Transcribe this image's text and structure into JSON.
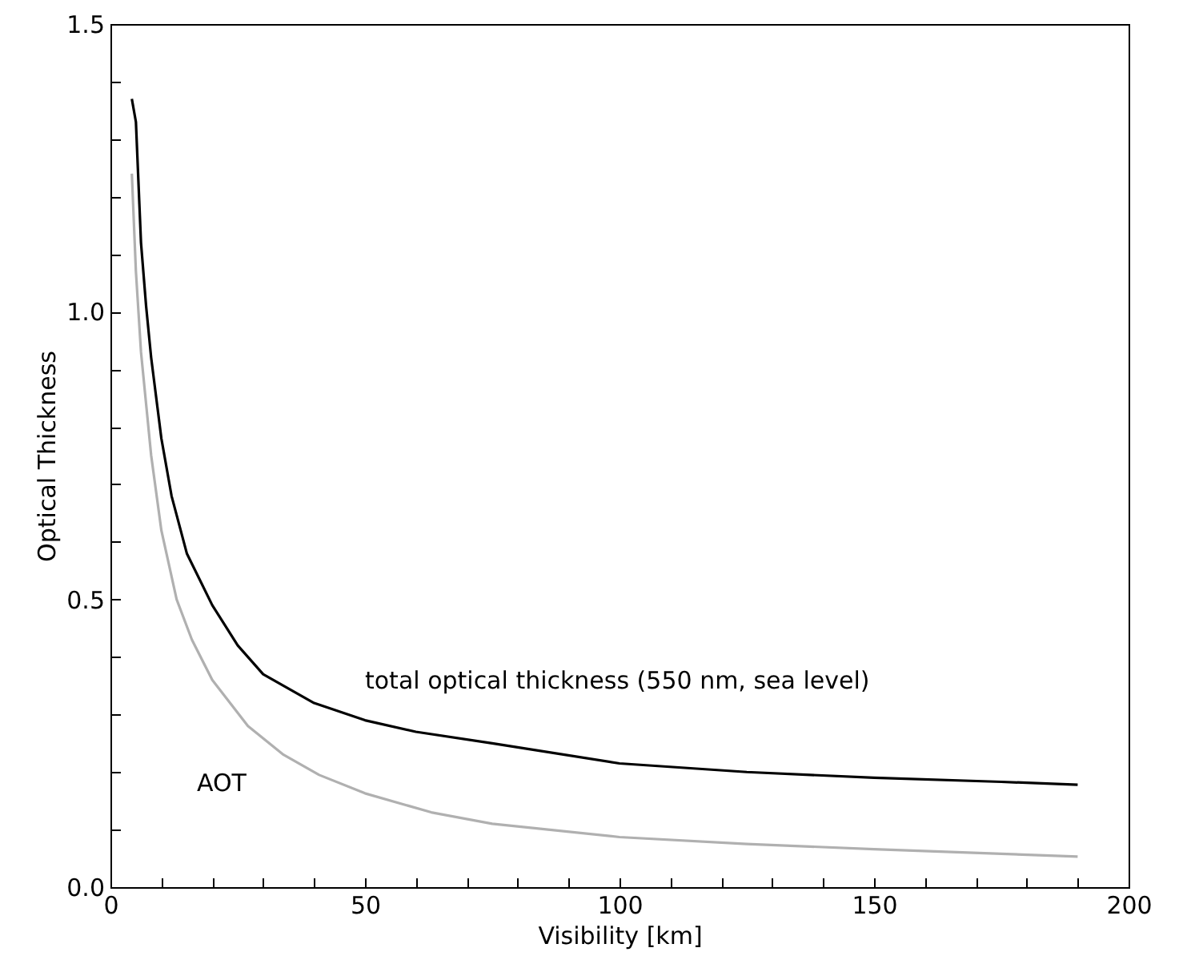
{
  "chart_data": {
    "type": "line",
    "xlabel": "Visibility [km]",
    "ylabel": "Optical Thickness",
    "xlim": [
      0,
      200
    ],
    "ylim": [
      0,
      1.5
    ],
    "xticks": [
      0,
      {
        "value": 10,
        "label": null
      },
      {
        "value": 20,
        "label": null
      },
      {
        "value": 30,
        "label": null
      },
      {
        "value": 40,
        "label": null
      },
      50,
      {
        "value": 60,
        "label": null
      },
      {
        "value": 70,
        "label": null
      },
      {
        "value": 80,
        "label": null
      },
      {
        "value": 90,
        "label": null
      },
      100,
      {
        "value": 110,
        "label": null
      },
      {
        "value": 120,
        "label": null
      },
      {
        "value": 130,
        "label": null
      },
      {
        "value": 140,
        "label": null
      },
      150,
      {
        "value": 160,
        "label": null
      },
      {
        "value": 170,
        "label": null
      },
      {
        "value": 180,
        "label": null
      },
      {
        "value": 190,
        "label": null
      },
      200
    ],
    "yticks": [
      {
        "value": 0,
        "label": "0.0"
      },
      {
        "value": 0.1,
        "label": null
      },
      {
        "value": 0.2,
        "label": null
      },
      {
        "value": 0.3,
        "label": null
      },
      {
        "value": 0.4,
        "label": null
      },
      {
        "value": 0.5,
        "label": "0.5"
      },
      {
        "value": 0.6,
        "label": null
      },
      {
        "value": 0.7,
        "label": null
      },
      {
        "value": 0.8,
        "label": null
      },
      {
        "value": 0.9,
        "label": null
      },
      {
        "value": 1.0,
        "label": "1.0"
      },
      {
        "value": 1.1,
        "label": null
      },
      {
        "value": 1.2,
        "label": null
      },
      {
        "value": 1.3,
        "label": null
      },
      {
        "value": 1.4,
        "label": null
      },
      {
        "value": 1.5,
        "label": "1.5"
      }
    ],
    "grid": false,
    "legend": false,
    "series": [
      {
        "color": "#000000",
        "x": [
          4.2,
          5,
          6,
          7,
          8,
          10,
          12,
          15,
          20,
          25,
          30,
          40,
          50,
          60,
          75,
          100,
          125,
          150,
          175,
          190
        ],
        "values": [
          1.37,
          1.33,
          1.12,
          1.01,
          0.92,
          0.78,
          0.68,
          0.58,
          0.49,
          0.42,
          0.37,
          0.32,
          0.29,
          0.27,
          0.25,
          0.215,
          0.2,
          0.19,
          0.183,
          0.178
        ]
      },
      {
        "color": "#b0b0b0",
        "x": [
          4.2,
          5,
          6,
          8,
          10,
          13,
          16,
          20,
          27,
          34,
          41,
          50,
          63,
          75,
          100,
          125,
          150,
          175,
          190
        ],
        "values": [
          1.24,
          1.07,
          0.93,
          0.75,
          0.62,
          0.5,
          0.43,
          0.36,
          0.28,
          0.23,
          0.195,
          0.163,
          0.13,
          0.11,
          0.087,
          0.075,
          0.066,
          0.058,
          0.053
        ]
      }
    ],
    "annotations": [
      "total optical thickness (550 nm, sea level)",
      "AOT"
    ]
  }
}
